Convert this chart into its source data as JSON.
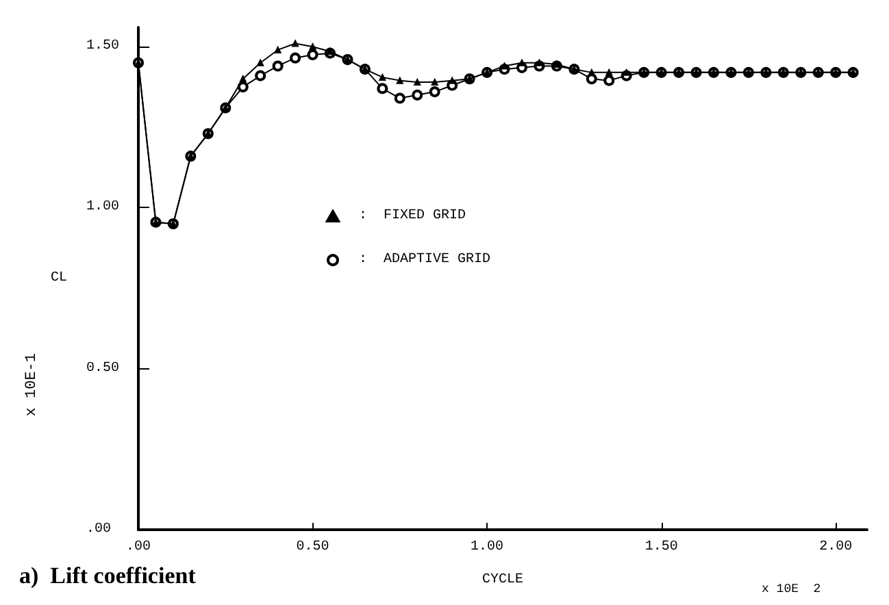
{
  "chart_data": {
    "type": "line",
    "xlabel": "CYCLE",
    "ylabel": "CL",
    "annotations": [
      "x 10E-1",
      "x 10E  2",
      "a)  Lift coefficient"
    ],
    "xlim": [
      0,
      2.09
    ],
    "ylim": [
      0,
      1.56
    ],
    "xticks": [
      {
        "value": 0,
        "label": ".00"
      },
      {
        "value": 0.5,
        "label": "0.50"
      },
      {
        "value": 1,
        "label": "1.00"
      },
      {
        "value": 1.5,
        "label": "1.50"
      },
      {
        "value": 2,
        "label": "2.00"
      }
    ],
    "yticks": [
      {
        "value": 0,
        "label": ".00"
      },
      {
        "value": 0.5,
        "label": "0.50"
      },
      {
        "value": 1,
        "label": "1.00"
      },
      {
        "value": 1.5,
        "label": "1.50"
      }
    ],
    "x": [
      0,
      0.05,
      0.1,
      0.15,
      0.2,
      0.25,
      0.3,
      0.35,
      0.4,
      0.45,
      0.5,
      0.55,
      0.6,
      0.65,
      0.7,
      0.75,
      0.8,
      0.85,
      0.9,
      0.95,
      1.0,
      1.05,
      1.1,
      1.15,
      1.2,
      1.25,
      1.3,
      1.35,
      1.4,
      1.45,
      1.5,
      1.55,
      1.6,
      1.65,
      1.7,
      1.75,
      1.8,
      1.85,
      1.9,
      1.95,
      2.0,
      2.05
    ],
    "series": [
      {
        "name": ":  FIXED GRID",
        "color": "#000000",
        "marker": "triangle",
        "values": [
          1.45,
          0.955,
          0.95,
          1.16,
          1.23,
          1.31,
          1.4,
          1.45,
          1.49,
          1.51,
          1.5,
          1.485,
          1.46,
          1.43,
          1.405,
          1.395,
          1.39,
          1.39,
          1.395,
          1.4,
          1.42,
          1.44,
          1.45,
          1.45,
          1.445,
          1.43,
          1.42,
          1.42,
          1.42,
          1.42,
          1.42,
          1.42,
          1.42,
          1.42,
          1.42,
          1.42,
          1.42,
          1.42,
          1.42,
          1.42,
          1.42,
          1.42
        ]
      },
      {
        "name": ":  ADAPTIVE GRID",
        "color": "#000000",
        "marker": "circle",
        "values": [
          1.45,
          0.955,
          0.95,
          1.16,
          1.23,
          1.31,
          1.375,
          1.41,
          1.44,
          1.465,
          1.475,
          1.48,
          1.46,
          1.43,
          1.37,
          1.34,
          1.35,
          1.36,
          1.38,
          1.4,
          1.42,
          1.43,
          1.435,
          1.44,
          1.44,
          1.43,
          1.4,
          1.395,
          1.41,
          1.42,
          1.42,
          1.42,
          1.42,
          1.42,
          1.42,
          1.42,
          1.42,
          1.42,
          1.42,
          1.42,
          1.42,
          1.42
        ]
      }
    ],
    "legend": "center",
    "grid": false,
    "line_style": "solid"
  }
}
